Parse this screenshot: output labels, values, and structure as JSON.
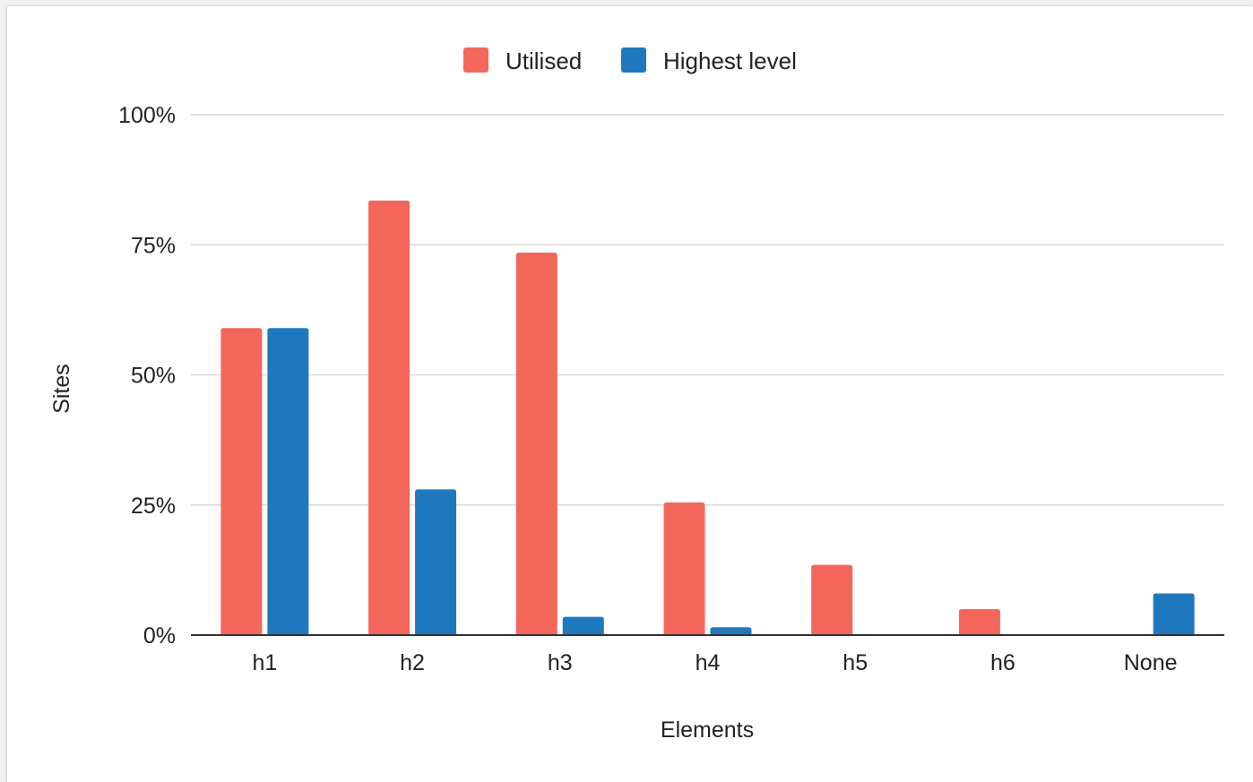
{
  "chart_data": {
    "type": "bar",
    "xlabel": "Elements",
    "ylabel": "Sites",
    "categories": [
      "h1",
      "h2",
      "h3",
      "h4",
      "h5",
      "h6",
      "None"
    ],
    "series": [
      {
        "name": "Utilised",
        "color": "#f4665b",
        "values": [
          59,
          83.5,
          73.5,
          25.5,
          13.5,
          5,
          0
        ]
      },
      {
        "name": "Highest level",
        "color": "#1f78bd",
        "values": [
          59,
          28,
          3.5,
          1.5,
          0,
          0,
          8
        ]
      }
    ],
    "ylim": [
      0,
      100
    ],
    "yticks": [
      {
        "value": 0,
        "label": "0%"
      },
      {
        "value": 25,
        "label": "25%"
      },
      {
        "value": 50,
        "label": "50%"
      },
      {
        "value": 75,
        "label": "75%"
      },
      {
        "value": 100,
        "label": "100%"
      }
    ],
    "grid": true,
    "legend_position": "top-center",
    "gridline_color": "#d9d9d9",
    "baseline_color": "#333333"
  }
}
